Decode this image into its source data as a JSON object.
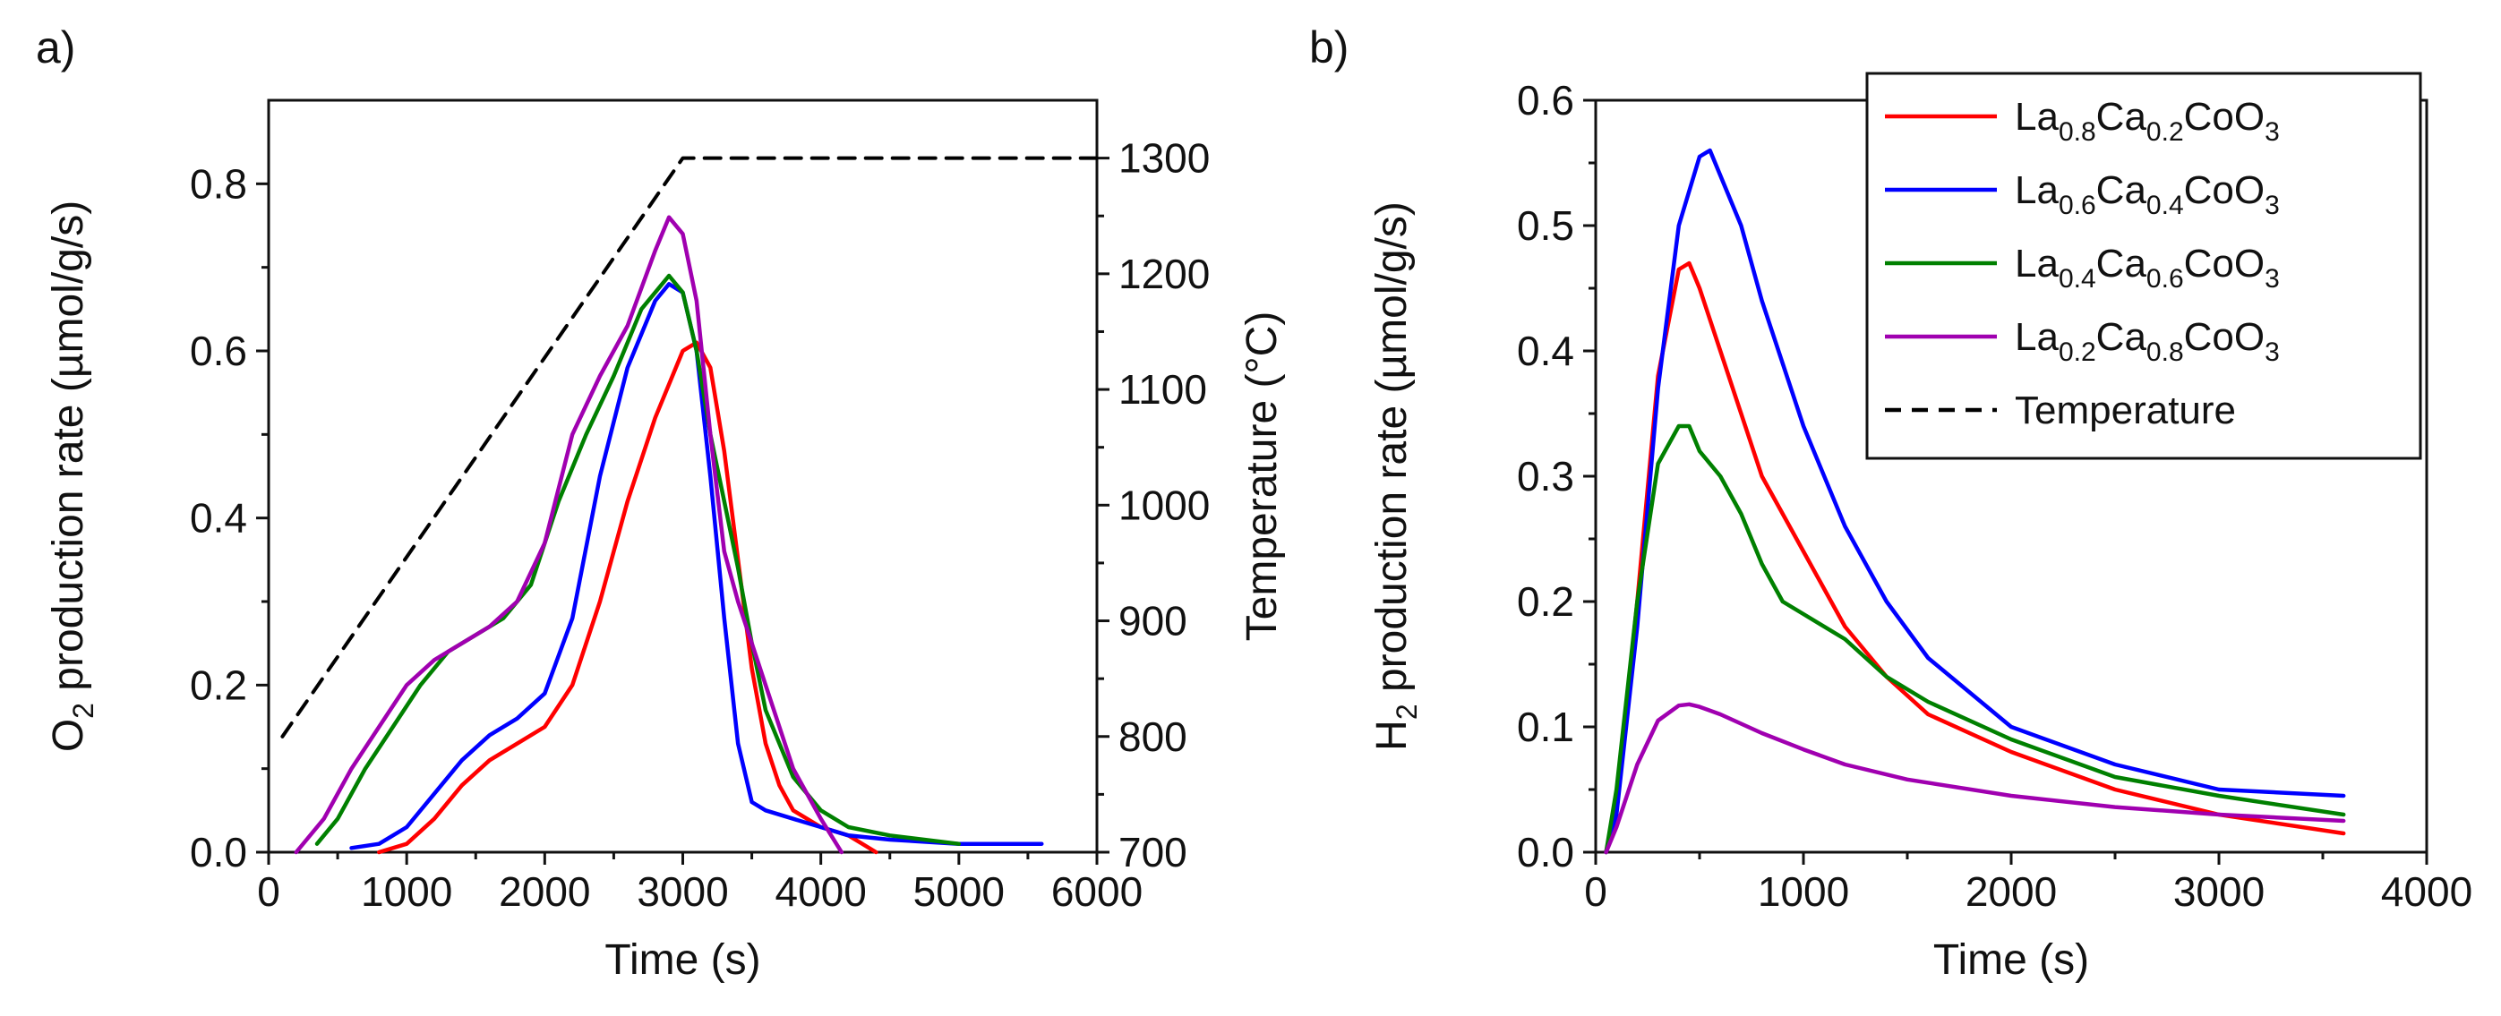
{
  "colors": {
    "La0.8Ca0.2CoO3": "#ff0000",
    "La0.6Ca0.4CoO3": "#0000ff",
    "La0.4Ca0.6CoO3": "#008000",
    "La0.2Ca0.8CoO3": "#a000b0",
    "Temperature": "#000000"
  },
  "chart_data": [
    {
      "type": "line",
      "panel_label": "a)",
      "xlabel": "Time (s)",
      "ylabel": "O2 production rate (µmol/g/s)",
      "ylabel_parts": {
        "pre": "O",
        "sub": "2",
        "post": " production rate (µmol/g/s)"
      },
      "y2label": "Temperature (°C)",
      "xlim": [
        0,
        6000
      ],
      "ylim": [
        0,
        0.9
      ],
      "y2lim": [
        700,
        1350
      ],
      "xticks": [
        0,
        1000,
        2000,
        3000,
        4000,
        5000,
        6000
      ],
      "yticks": [
        0.0,
        0.2,
        0.4,
        0.6,
        0.8
      ],
      "ytick_labels": [
        "0.0",
        "0.2",
        "0.4",
        "0.6",
        "0.8"
      ],
      "y2ticks": [
        700,
        800,
        900,
        1000,
        1100,
        1200,
        1300
      ],
      "series": [
        {
          "name": "La0.8Ca0.2CoO3",
          "x": [
            800,
            1000,
            1200,
            1400,
            1600,
            1800,
            2000,
            2200,
            2400,
            2600,
            2800,
            3000,
            3100,
            3200,
            3300,
            3400,
            3500,
            3600,
            3700,
            3800,
            3900,
            4000,
            4200,
            4400
          ],
          "values": [
            0.0,
            0.01,
            0.04,
            0.08,
            0.11,
            0.13,
            0.15,
            0.2,
            0.3,
            0.42,
            0.52,
            0.6,
            0.61,
            0.58,
            0.48,
            0.35,
            0.22,
            0.13,
            0.08,
            0.05,
            0.04,
            0.03,
            0.02,
            0.0
          ]
        },
        {
          "name": "La0.6Ca0.4CoO3",
          "x": [
            600,
            800,
            1000,
            1200,
            1400,
            1600,
            1800,
            2000,
            2200,
            2400,
            2600,
            2800,
            2900,
            3000,
            3100,
            3200,
            3300,
            3400,
            3500,
            3600,
            3800,
            4000,
            4200,
            4500,
            5000,
            5600
          ],
          "values": [
            0.005,
            0.01,
            0.03,
            0.07,
            0.11,
            0.14,
            0.16,
            0.19,
            0.28,
            0.45,
            0.58,
            0.66,
            0.68,
            0.67,
            0.6,
            0.45,
            0.28,
            0.13,
            0.06,
            0.05,
            0.04,
            0.03,
            0.02,
            0.015,
            0.01,
            0.01
          ]
        },
        {
          "name": "La0.4Ca0.6CoO3",
          "x": [
            350,
            500,
            700,
            900,
            1100,
            1300,
            1500,
            1700,
            1900,
            2100,
            2300,
            2500,
            2700,
            2900,
            3000,
            3100,
            3200,
            3300,
            3400,
            3500,
            3600,
            3800,
            4000,
            4200,
            4500,
            5000
          ],
          "values": [
            0.01,
            0.04,
            0.1,
            0.15,
            0.2,
            0.24,
            0.26,
            0.28,
            0.32,
            0.42,
            0.5,
            0.57,
            0.65,
            0.69,
            0.67,
            0.6,
            0.5,
            0.42,
            0.34,
            0.25,
            0.17,
            0.09,
            0.05,
            0.03,
            0.02,
            0.01
          ]
        },
        {
          "name": "La0.2Ca0.8CoO3",
          "x": [
            200,
            400,
            600,
            800,
            1000,
            1200,
            1400,
            1600,
            1800,
            2000,
            2200,
            2400,
            2600,
            2800,
            2900,
            3000,
            3100,
            3200,
            3300,
            3400,
            3600,
            3800,
            4000,
            4150
          ],
          "values": [
            0.0,
            0.04,
            0.1,
            0.15,
            0.2,
            0.23,
            0.25,
            0.27,
            0.3,
            0.37,
            0.5,
            0.57,
            0.63,
            0.72,
            0.76,
            0.74,
            0.66,
            0.5,
            0.36,
            0.3,
            0.2,
            0.1,
            0.04,
            0.0
          ]
        },
        {
          "name": "Temperature",
          "axis": "y2",
          "dashed": true,
          "x": [
            100,
            3000,
            6000
          ],
          "values": [
            800,
            1300,
            1300
          ]
        }
      ]
    },
    {
      "type": "line",
      "panel_label": "b)",
      "xlabel": "Time (s)",
      "ylabel": "H2 production rate (µmol/g/s)",
      "ylabel_parts": {
        "pre": "H",
        "sub": "2",
        "post": " production rate (µmol/g/s)"
      },
      "xlim": [
        0,
        4000
      ],
      "ylim": [
        0,
        0.6
      ],
      "xticks": [
        0,
        1000,
        2000,
        3000,
        4000
      ],
      "yticks": [
        0.0,
        0.1,
        0.2,
        0.3,
        0.4,
        0.5,
        0.6
      ],
      "ytick_labels": [
        "0.0",
        "0.1",
        "0.2",
        "0.3",
        "0.4",
        "0.5",
        "0.6"
      ],
      "series": [
        {
          "name": "La0.8Ca0.2CoO3",
          "x": [
            50,
            100,
            200,
            300,
            400,
            450,
            500,
            600,
            700,
            800,
            1000,
            1200,
            1400,
            1600,
            2000,
            2500,
            3000,
            3600
          ],
          "values": [
            0.0,
            0.04,
            0.2,
            0.38,
            0.465,
            0.47,
            0.45,
            0.4,
            0.35,
            0.3,
            0.24,
            0.18,
            0.14,
            0.11,
            0.08,
            0.05,
            0.03,
            0.015
          ]
        },
        {
          "name": "La0.6Ca0.4CoO3",
          "x": [
            50,
            100,
            200,
            300,
            400,
            500,
            550,
            600,
            700,
            800,
            1000,
            1200,
            1400,
            1600,
            2000,
            2500,
            3000,
            3600
          ],
          "values": [
            0.0,
            0.03,
            0.18,
            0.37,
            0.5,
            0.555,
            0.56,
            0.54,
            0.5,
            0.44,
            0.34,
            0.26,
            0.2,
            0.155,
            0.1,
            0.07,
            0.05,
            0.045
          ]
        },
        {
          "name": "La0.4Ca0.6CoO3",
          "x": [
            50,
            100,
            200,
            300,
            400,
            450,
            500,
            600,
            700,
            800,
            900,
            1000,
            1200,
            1400,
            1600,
            2000,
            2500,
            3000,
            3600
          ],
          "values": [
            0.0,
            0.05,
            0.2,
            0.31,
            0.34,
            0.34,
            0.32,
            0.3,
            0.27,
            0.23,
            0.2,
            0.19,
            0.17,
            0.14,
            0.12,
            0.09,
            0.06,
            0.045,
            0.03
          ]
        },
        {
          "name": "La0.2Ca0.8CoO3",
          "x": [
            50,
            100,
            200,
            300,
            400,
            450,
            500,
            600,
            800,
            1000,
            1200,
            1500,
            2000,
            2500,
            3000,
            3600
          ],
          "values": [
            0.0,
            0.02,
            0.07,
            0.105,
            0.117,
            0.118,
            0.116,
            0.11,
            0.095,
            0.082,
            0.07,
            0.058,
            0.045,
            0.036,
            0.03,
            0.025
          ]
        }
      ],
      "legend": {
        "location": "top-right",
        "entries": [
          {
            "name": "La0.8Ca0.2CoO3",
            "parts": [
              [
                "La",
                ""
              ],
              [
                "0.8",
                "sub"
              ],
              [
                "Ca",
                ""
              ],
              [
                "0.2",
                "sub"
              ],
              [
                "CoO",
                ""
              ],
              [
                "3",
                "sub"
              ]
            ],
            "dashed": false
          },
          {
            "name": "La0.6Ca0.4CoO3",
            "parts": [
              [
                "La",
                ""
              ],
              [
                "0.6",
                "sub"
              ],
              [
                "Ca",
                ""
              ],
              [
                "0.4",
                "sub"
              ],
              [
                "CoO",
                ""
              ],
              [
                "3",
                "sub"
              ]
            ],
            "dashed": false
          },
          {
            "name": "La0.4Ca0.6CoO3",
            "parts": [
              [
                "La",
                ""
              ],
              [
                "0.4",
                "sub"
              ],
              [
                "Ca",
                ""
              ],
              [
                "0.6",
                "sub"
              ],
              [
                "CoO",
                ""
              ],
              [
                "3",
                "sub"
              ]
            ],
            "dashed": false
          },
          {
            "name": "La0.2Ca0.8CoO3",
            "parts": [
              [
                "La",
                ""
              ],
              [
                "0.2",
                "sub"
              ],
              [
                "Ca",
                ""
              ],
              [
                "0.8",
                "sub"
              ],
              [
                "CoO",
                ""
              ],
              [
                "3",
                "sub"
              ]
            ],
            "dashed": false
          },
          {
            "name": "Temperature",
            "parts": [
              [
                "Temperature",
                ""
              ]
            ],
            "dashed": true
          }
        ]
      }
    }
  ]
}
